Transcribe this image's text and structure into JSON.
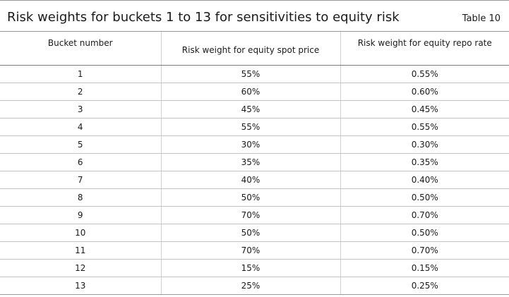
{
  "header": {
    "title": "Risk weights for buckets 1 to 13 for sensitivities to equity risk",
    "table_number": "Table 10"
  },
  "table": {
    "columns": [
      "Bucket number",
      "Risk weight for equity spot price",
      "Risk weight for equity repo rate"
    ],
    "rows": [
      [
        "1",
        "55%",
        "0.55%"
      ],
      [
        "2",
        "60%",
        "0.60%"
      ],
      [
        "3",
        "45%",
        "0.45%"
      ],
      [
        "4",
        "55%",
        "0.55%"
      ],
      [
        "5",
        "30%",
        "0.30%"
      ],
      [
        "6",
        "35%",
        "0.35%"
      ],
      [
        "7",
        "40%",
        "0.40%"
      ],
      [
        "8",
        "50%",
        "0.50%"
      ],
      [
        "9",
        "70%",
        "0.70%"
      ],
      [
        "10",
        "50%",
        "0.50%"
      ],
      [
        "11",
        "70%",
        "0.70%"
      ],
      [
        "12",
        "15%",
        "0.15%"
      ],
      [
        "13",
        "25%",
        "0.25%"
      ]
    ]
  }
}
